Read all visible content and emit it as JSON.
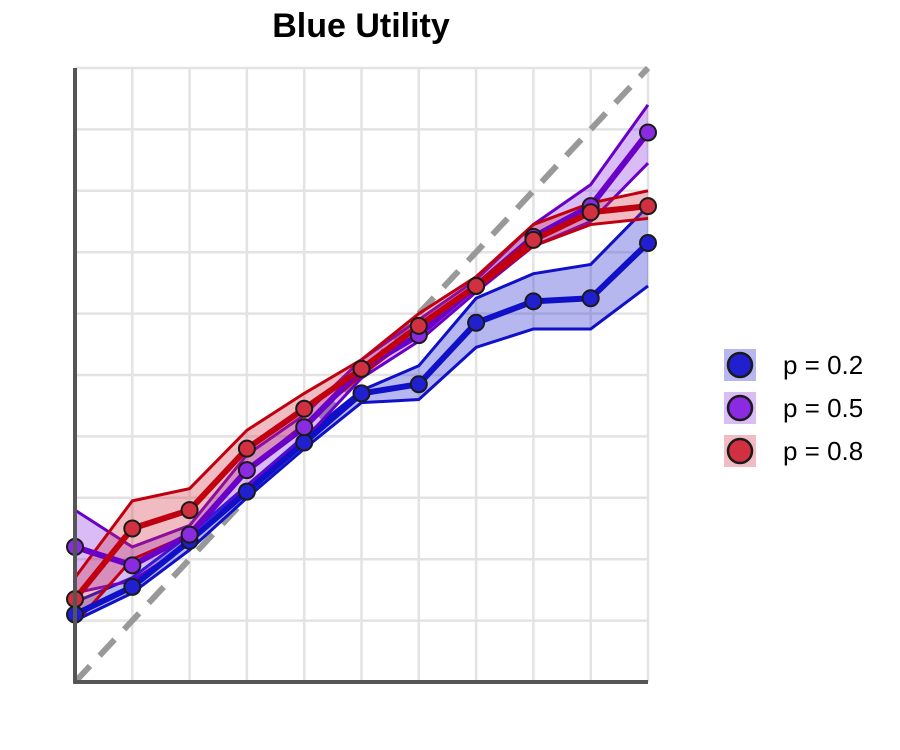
{
  "chart_data": {
    "type": "line",
    "title": "Blue Utility",
    "xlabel": "",
    "ylabel": "",
    "xlim": [
      0,
      1
    ],
    "ylim": [
      0,
      1
    ],
    "grid": true,
    "tick_labels_visible": false,
    "x": [
      0.0,
      0.1,
      0.2,
      0.3,
      0.4,
      0.5,
      0.6,
      0.7,
      0.8,
      0.9,
      1.0
    ],
    "reference_line": {
      "style": "dashed",
      "from": [
        0,
        0
      ],
      "to": [
        1,
        1
      ],
      "color": "#999999"
    },
    "legend_position": "right",
    "series": [
      {
        "name": "p = 0.2",
        "color": "#1010c8",
        "fill": "#2020d0",
        "values": [
          0.11,
          0.155,
          0.23,
          0.31,
          0.39,
          0.47,
          0.485,
          0.585,
          0.62,
          0.625,
          0.715
        ],
        "lower": [
          0.1,
          0.145,
          0.215,
          0.3,
          0.38,
          0.455,
          0.46,
          0.545,
          0.575,
          0.575,
          0.645
        ],
        "upper": [
          0.13,
          0.17,
          0.24,
          0.32,
          0.4,
          0.475,
          0.515,
          0.625,
          0.665,
          0.68,
          0.775
        ]
      },
      {
        "name": "p = 0.5",
        "color": "#6a00c8",
        "fill": "#8a2be2",
        "values": [
          0.22,
          0.19,
          0.24,
          0.345,
          0.415,
          0.51,
          0.565,
          0.645,
          0.725,
          0.775,
          0.895
        ],
        "lower": [
          0.145,
          0.165,
          0.225,
          0.32,
          0.395,
          0.495,
          0.555,
          0.635,
          0.71,
          0.75,
          0.845
        ],
        "upper": [
          0.28,
          0.22,
          0.255,
          0.37,
          0.435,
          0.525,
          0.59,
          0.655,
          0.745,
          0.81,
          0.94
        ]
      },
      {
        "name": "p = 0.8",
        "color": "#c00010",
        "fill": "#d03040",
        "values": [
          0.135,
          0.25,
          0.28,
          0.38,
          0.445,
          0.51,
          0.58,
          0.645,
          0.72,
          0.765,
          0.775
        ],
        "lower": [
          0.095,
          0.2,
          0.24,
          0.345,
          0.42,
          0.5,
          0.57,
          0.64,
          0.71,
          0.745,
          0.755
        ],
        "upper": [
          0.17,
          0.295,
          0.315,
          0.41,
          0.47,
          0.525,
          0.6,
          0.66,
          0.745,
          0.78,
          0.8
        ]
      }
    ]
  }
}
